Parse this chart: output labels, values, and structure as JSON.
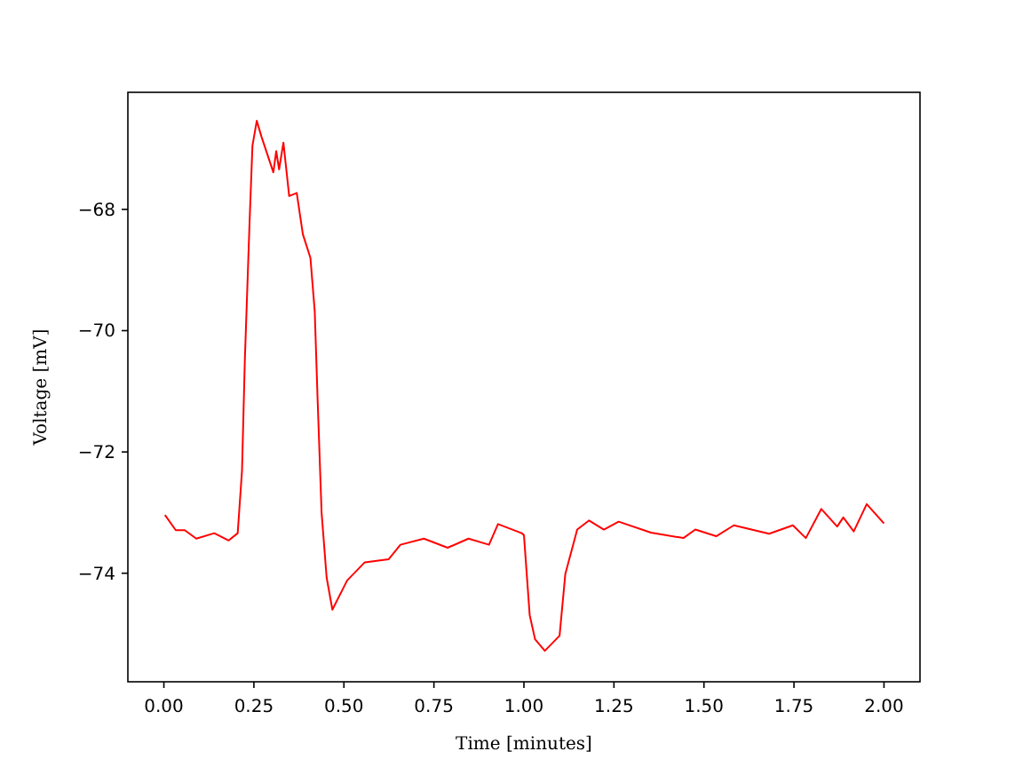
{
  "chart_data": {
    "type": "line",
    "xlabel": "Time [minutes]",
    "ylabel": "Voltage [mV]",
    "xlim": [
      -0.1,
      2.1
    ],
    "ylim": [
      -75.79,
      -66.07
    ],
    "xticks": [
      {
        "value": 0,
        "label": "0.00"
      },
      {
        "value": 0.25,
        "label": "0.25"
      },
      {
        "value": 0.5,
        "label": "0.50"
      },
      {
        "value": 0.75,
        "label": "0.75"
      },
      {
        "value": 1,
        "label": "1.00"
      },
      {
        "value": 1.25,
        "label": "1.25"
      },
      {
        "value": 1.5,
        "label": "1.50"
      },
      {
        "value": 1.75,
        "label": "1.75"
      },
      {
        "value": 2,
        "label": "2.00"
      }
    ],
    "yticks": [
      {
        "value": -74,
        "label": "−74"
      },
      {
        "value": -72,
        "label": "−72"
      },
      {
        "value": -70,
        "label": "−70"
      },
      {
        "value": -68,
        "label": "−68"
      }
    ],
    "series": [
      {
        "color": "#ff0000",
        "x": [
          0.003,
          0.033,
          0.058,
          0.09,
          0.14,
          0.18,
          0.205,
          0.217,
          0.225,
          0.238,
          0.246,
          0.258,
          0.271,
          0.304,
          0.312,
          0.32,
          0.332,
          0.348,
          0.369,
          0.386,
          0.407,
          0.419,
          0.427,
          0.438,
          0.452,
          0.468,
          0.509,
          0.558,
          0.624,
          0.657,
          0.722,
          0.788,
          0.846,
          0.903,
          0.928,
          0.994,
          1.0,
          1.016,
          1.031,
          1.058,
          1.099,
          1.115,
          1.148,
          1.181,
          1.222,
          1.263,
          1.353,
          1.443,
          1.476,
          1.534,
          1.583,
          1.681,
          1.747,
          1.783,
          1.826,
          1.87,
          1.887,
          1.916,
          1.952,
          2.0
        ],
        "values": [
          -73.04,
          -73.29,
          -73.29,
          -73.43,
          -73.34,
          -73.46,
          -73.34,
          -72.31,
          -70.46,
          -68.21,
          -66.95,
          -66.54,
          -66.8,
          -67.39,
          -67.04,
          -67.34,
          -66.9,
          -67.78,
          -67.73,
          -68.41,
          -68.8,
          -69.68,
          -71.14,
          -73.0,
          -74.07,
          -74.6,
          -74.12,
          -73.82,
          -73.77,
          -73.53,
          -73.43,
          -73.58,
          -73.43,
          -73.53,
          -73.19,
          -73.34,
          -73.37,
          -74.69,
          -75.09,
          -75.28,
          -75.03,
          -74.01,
          -73.28,
          -73.13,
          -73.28,
          -73.15,
          -73.33,
          -73.42,
          -73.28,
          -73.39,
          -73.21,
          -73.35,
          -73.21,
          -73.42,
          -72.94,
          -73.23,
          -73.08,
          -73.31,
          -72.86,
          -73.18
        ]
      }
    ]
  }
}
